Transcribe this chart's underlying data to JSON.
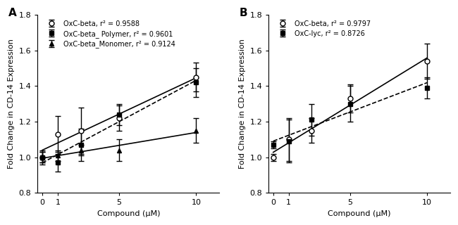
{
  "panel_A": {
    "x": [
      0,
      1,
      2.5,
      5,
      10
    ],
    "series": [
      {
        "label": "OxC-beta, r² = 0.9588",
        "y": [
          1.0,
          1.13,
          1.15,
          1.22,
          1.45
        ],
        "yerr": [
          0.04,
          0.1,
          0.13,
          0.07,
          0.08
        ],
        "marker": "o",
        "markerface": "white",
        "linestyle": "-",
        "linewidth": 1.2,
        "color": "black"
      },
      {
        "label": "OxC-beta_ Polymer, r² = 0.9601",
        "y": [
          1.0,
          0.97,
          1.07,
          1.24,
          1.42
        ],
        "yerr": [
          0.03,
          0.05,
          0.09,
          0.06,
          0.08
        ],
        "marker": "s",
        "markerface": "black",
        "linestyle": "--",
        "linewidth": 1.2,
        "color": "black"
      },
      {
        "label": "OxC-beta_Monomer, r² = 0.9124",
        "y": [
          1.0,
          1.01,
          1.04,
          1.04,
          1.15
        ],
        "yerr": [
          0.03,
          0.03,
          0.03,
          0.06,
          0.07
        ],
        "marker": "^",
        "markerface": "black",
        "linestyle": "-",
        "linewidth": 1.2,
        "color": "black"
      }
    ],
    "xlabel": "Compound (μM)",
    "ylabel": "Fold Change in CD-14 Expression",
    "ylim": [
      0.8,
      1.8
    ],
    "yticks": [
      0.8,
      1.0,
      1.2,
      1.4,
      1.6,
      1.8
    ],
    "xticks": [
      0,
      1,
      5,
      10
    ],
    "xticklabels": [
      "0",
      "1",
      "5",
      "10"
    ],
    "xlim": [
      -0.3,
      11.5
    ],
    "panel_label": "A"
  },
  "panel_B": {
    "x": [
      0,
      1,
      2.5,
      5,
      10
    ],
    "series": [
      {
        "label": "OxC-beta, r² = 0.9797",
        "y": [
          1.0,
          1.1,
          1.15,
          1.33,
          1.54
        ],
        "yerr": [
          0.02,
          0.12,
          0.07,
          0.08,
          0.1
        ],
        "marker": "o",
        "markerface": "white",
        "linestyle": "-",
        "linewidth": 1.2,
        "color": "black"
      },
      {
        "label": "OxC-lyc, r² = 0.8726",
        "y": [
          1.07,
          1.09,
          1.21,
          1.3,
          1.39
        ],
        "yerr": [
          0.02,
          0.12,
          0.09,
          0.1,
          0.06
        ],
        "marker": "s",
        "markerface": "black",
        "linestyle": "--",
        "linewidth": 1.2,
        "color": "black"
      }
    ],
    "xlabel": "Compound (μM)",
    "ylabel": "Fold Change in CD-14 Expression",
    "ylim": [
      0.8,
      1.8
    ],
    "yticks": [
      0.8,
      1.0,
      1.2,
      1.4,
      1.6,
      1.8
    ],
    "xticks": [
      0,
      1,
      5,
      10
    ],
    "xticklabels": [
      "0",
      "1",
      "5",
      "10"
    ],
    "xlim": [
      -0.3,
      11.5
    ],
    "panel_label": "B"
  },
  "figure_width": 6.5,
  "figure_height": 3.2,
  "dpi": 100
}
